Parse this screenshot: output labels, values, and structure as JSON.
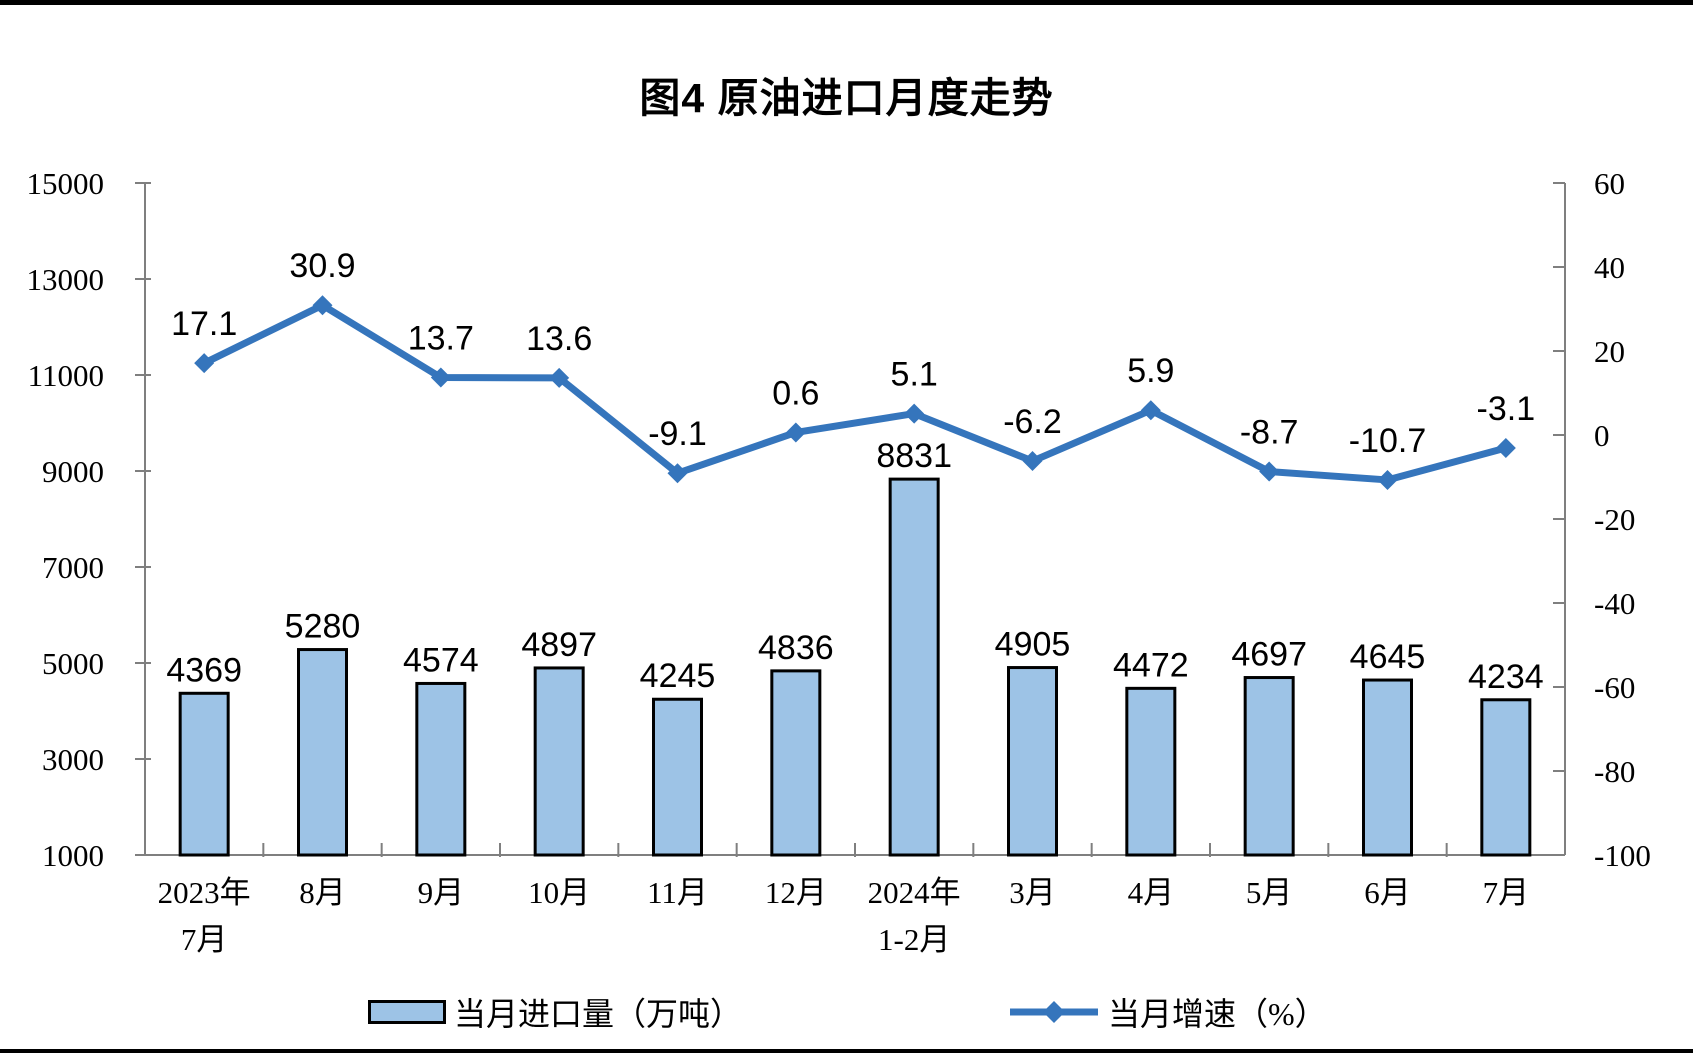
{
  "chart_data": {
    "type": "bar+line",
    "title": "图4 原油进口月度走势",
    "categories": [
      [
        "2023年",
        "7月"
      ],
      [
        "8月"
      ],
      [
        "9月"
      ],
      [
        "10月"
      ],
      [
        "11月"
      ],
      [
        "12月"
      ],
      [
        "2024年",
        "1-2月"
      ],
      [
        "3月"
      ],
      [
        "4月"
      ],
      [
        "5月"
      ],
      [
        "6月"
      ],
      [
        "7月"
      ]
    ],
    "series": [
      {
        "name": "当月进口量（万吨）",
        "type": "bar",
        "axis": "left",
        "values": [
          4369,
          5280,
          4574,
          4897,
          4245,
          4836,
          8831,
          4905,
          4472,
          4697,
          4645,
          4234
        ]
      },
      {
        "name": "当月增速（%）",
        "type": "line",
        "axis": "right",
        "values": [
          17.1,
          30.9,
          13.7,
          13.6,
          -9.1,
          0.6,
          5.1,
          -6.2,
          5.9,
          -8.7,
          -10.7,
          -3.1
        ]
      }
    ],
    "left_axis": {
      "min": 1000,
      "max": 15000,
      "ticks": [
        1000,
        3000,
        5000,
        7000,
        9000,
        11000,
        13000,
        15000
      ]
    },
    "right_axis": {
      "min": -100,
      "max": 60,
      "ticks": [
        -100,
        -80,
        -60,
        -40,
        -20,
        0,
        20,
        40,
        60
      ]
    },
    "grid": false,
    "data_labels": true,
    "legend_position": "bottom",
    "colors": {
      "bar_fill": "#9DC3E6",
      "bar_stroke": "#000000",
      "line": "#3575BC",
      "axis": "#7F7F7F",
      "text": "#000000",
      "rule": "#000000"
    }
  }
}
